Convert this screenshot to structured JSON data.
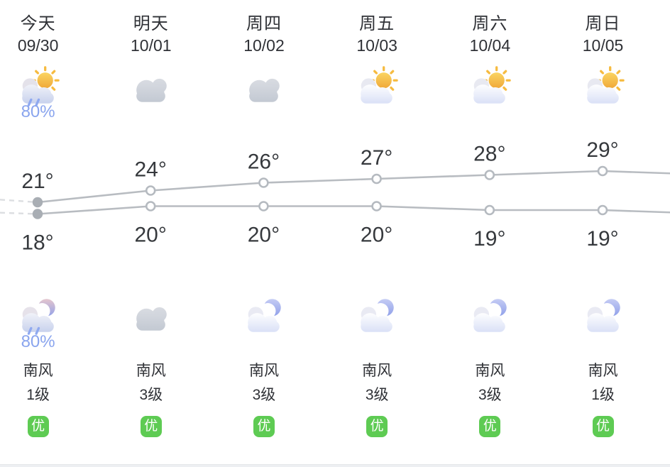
{
  "days": [
    {
      "name": "今天",
      "date": "09/30",
      "day_icon": "shower-sun-icon",
      "day_precip": "80%",
      "night_icon": "shower-moon-icon",
      "night_precip": "80%",
      "wind_dir": "南风",
      "wind_level": "1级",
      "aqi": "优"
    },
    {
      "name": "明天",
      "date": "10/01",
      "day_icon": "overcast-icon",
      "day_precip": "",
      "night_icon": "overcast-icon",
      "night_precip": "",
      "wind_dir": "南风",
      "wind_level": "3级",
      "aqi": "优"
    },
    {
      "name": "周四",
      "date": "10/02",
      "day_icon": "overcast-icon",
      "day_precip": "",
      "night_icon": "cloudy-moon-icon",
      "night_precip": "",
      "wind_dir": "南风",
      "wind_level": "3级",
      "aqi": "优"
    },
    {
      "name": "周五",
      "date": "10/03",
      "day_icon": "cloudy-sun-icon",
      "day_precip": "",
      "night_icon": "cloudy-moon-icon",
      "night_precip": "",
      "wind_dir": "南风",
      "wind_level": "3级",
      "aqi": "优"
    },
    {
      "name": "周六",
      "date": "10/04",
      "day_icon": "cloudy-sun-icon",
      "day_precip": "",
      "night_icon": "cloudy-moon-icon",
      "night_precip": "",
      "wind_dir": "南风",
      "wind_level": "3级",
      "aqi": "优"
    },
    {
      "name": "周日",
      "date": "10/05",
      "day_icon": "cloudy-sun-icon",
      "day_precip": "",
      "night_icon": "cloudy-moon-icon",
      "night_precip": "",
      "wind_dir": "南风",
      "wind_level": "1级",
      "aqi": "优"
    }
  ],
  "chart_data": {
    "type": "line",
    "categories": [
      "今天",
      "明天",
      "周四",
      "周五",
      "周六",
      "周日"
    ],
    "x_dates": [
      "09/30",
      "10/01",
      "10/02",
      "10/03",
      "10/04",
      "10/05"
    ],
    "series": [
      {
        "name": "day-high-temp",
        "values": [
          21,
          24,
          26,
          27,
          28,
          29
        ]
      },
      {
        "name": "night-low-temp",
        "values": [
          18,
          20,
          20,
          20,
          19,
          19
        ]
      }
    ],
    "unit": "°",
    "legend": "none",
    "grid": false,
    "line_color": "#b8bcc1",
    "dashed_color": "#dcdee1",
    "label_color": "#36393d",
    "first_point_style": "filled",
    "other_point_style": "hollow",
    "estimated_offscreen_prev": {
      "high": 23,
      "low": 19
    },
    "estimated_offscreen_next": {
      "high": 28,
      "low": 18
    }
  },
  "colors": {
    "accent_precip": "#8aa5ee",
    "aqi_green": "#5ecb53",
    "text_dark": "#2f3136"
  }
}
